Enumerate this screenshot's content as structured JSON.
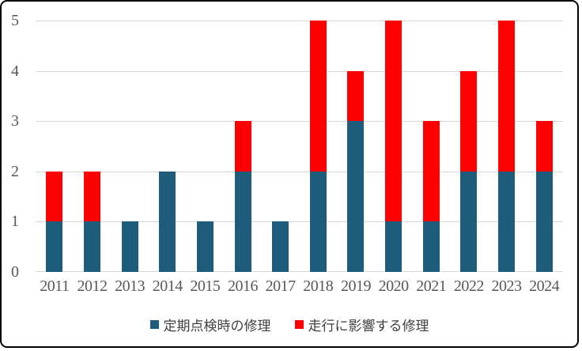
{
  "chart_data": {
    "type": "bar",
    "stacked": true,
    "title": "",
    "xlabel": "",
    "ylabel": "",
    "categories": [
      "2011",
      "2012",
      "2013",
      "2014",
      "2015",
      "2016",
      "2017",
      "2018",
      "2019",
      "2020",
      "2021",
      "2022",
      "2023",
      "2024"
    ],
    "series": [
      {
        "name": "定期点検時の修理",
        "color": "#1e5c7b",
        "values": [
          1,
          1,
          1,
          2,
          1,
          2,
          1,
          2,
          3,
          1,
          1,
          2,
          2,
          2
        ]
      },
      {
        "name": "走行に影響する修理",
        "color": "#ff0000",
        "values": [
          1,
          1,
          0,
          0,
          0,
          1,
          0,
          3,
          1,
          4,
          2,
          2,
          3,
          1
        ]
      }
    ],
    "ylim": [
      0,
      5
    ],
    "yticks": [
      "0",
      "1",
      "2",
      "3",
      "4",
      "5"
    ],
    "grid": true,
    "gridline_color": "#d9d9d9",
    "tick_label_color": "#595959",
    "legend_position": "bottom",
    "legend_text_color": "#404040",
    "background_color": "#ffffff",
    "border_color": "#000000"
  }
}
